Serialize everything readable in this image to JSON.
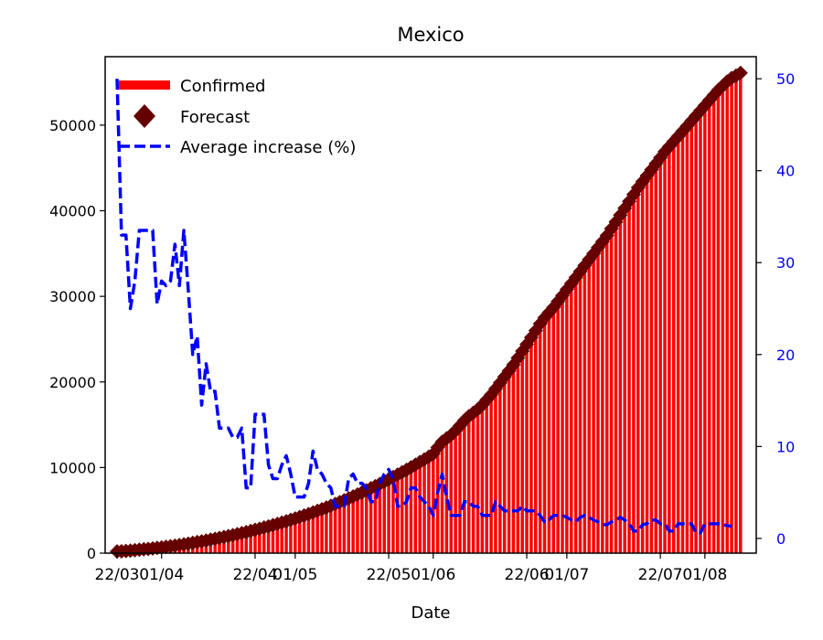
{
  "chart_data": {
    "type": "bar",
    "title": "Mexico",
    "xlabel": "Date",
    "ylabel": "",
    "ylim": [
      0,
      58000
    ],
    "y2lim": [
      -1.6,
      52.4
    ],
    "x_ticks": [
      {
        "day": 0,
        "label": "22/03"
      },
      {
        "day": 10,
        "label": "01/04"
      },
      {
        "day": 31,
        "label": "22/04"
      },
      {
        "day": 40,
        "label": "01/05"
      },
      {
        "day": 61,
        "label": "22/05"
      },
      {
        "day": 71,
        "label": "01/06"
      },
      {
        "day": 92,
        "label": "22/06"
      },
      {
        "day": 101,
        "label": "01/07"
      },
      {
        "day": 122,
        "label": "22/07"
      },
      {
        "day": 132,
        "label": "01/08"
      }
    ],
    "y_ticks": [
      "0",
      "10000",
      "20000",
      "30000",
      "40000",
      "50000"
    ],
    "y2_ticks": [
      "0",
      "10",
      "20",
      "30",
      "40",
      "50"
    ],
    "legend_position": "top-left",
    "colors": {
      "confirmed": "#ff0000",
      "forecast": "#660000",
      "average": "#0000ff"
    },
    "series": [
      {
        "name": "Confirmed",
        "kind": "bar",
        "color": "#ff0000",
        "x": [
          0,
          1,
          2,
          3,
          4,
          5,
          6,
          7,
          8,
          9,
          10,
          11,
          12,
          13,
          14,
          15,
          16,
          17,
          18,
          19,
          20,
          21,
          22,
          23,
          24,
          25,
          26,
          27,
          28,
          29,
          30,
          31,
          32,
          33,
          34,
          35,
          36,
          37,
          38,
          39,
          40,
          41,
          42,
          43,
          44,
          45,
          46,
          47,
          48,
          49,
          50,
          51,
          52,
          53,
          54,
          55,
          56,
          57,
          58,
          59,
          60,
          61,
          62,
          63,
          64,
          65,
          66,
          67,
          68,
          69,
          70,
          71,
          72,
          73,
          74,
          75,
          76,
          77,
          78,
          79,
          80,
          81,
          82,
          83,
          84,
          85,
          86,
          87,
          88,
          89,
          90,
          91,
          92,
          93,
          94,
          95,
          96,
          97,
          98,
          99,
          100,
          101,
          102,
          103,
          104,
          105,
          106,
          107,
          108,
          109,
          110,
          111,
          112,
          113,
          114,
          115,
          116,
          117,
          118,
          119,
          120,
          121,
          122,
          123,
          124,
          125,
          126,
          127,
          128,
          129,
          130,
          131,
          132,
          133,
          134,
          135,
          136,
          137,
          138,
          139,
          140
        ],
        "values": [
          200,
          220,
          260,
          300,
          350,
          400,
          450,
          500,
          550,
          610,
          670,
          730,
          800,
          870,
          950,
          1030,
          1110,
          1200,
          1290,
          1380,
          1470,
          1570,
          1670,
          1770,
          1880,
          1990,
          2100,
          2220,
          2340,
          2460,
          2590,
          2720,
          2850,
          2990,
          3130,
          3270,
          3420,
          3570,
          3730,
          3890,
          4050,
          4220,
          4390,
          4570,
          4750,
          4940,
          5130,
          5330,
          5530,
          5740,
          5950,
          6170,
          6390,
          6620,
          6850,
          7090,
          7330,
          7580,
          7830,
          8090,
          8350,
          8620,
          8890,
          9170,
          9450,
          9740,
          10030,
          10330,
          10640,
          10950,
          11270,
          11600,
          12350,
          13000,
          13400,
          13800,
          14300,
          14900,
          15500,
          16000,
          16400,
          16800,
          17300,
          17900,
          18500,
          19200,
          19900,
          20600,
          21300,
          22000,
          22800,
          23600,
          24400,
          25200,
          26000,
          26800,
          27500,
          28100,
          28700,
          29400,
          30100,
          30800,
          31500,
          32200,
          32900,
          33600,
          34300,
          35000,
          35700,
          36400,
          37100,
          37900,
          38700,
          39500,
          40300,
          41100,
          41900,
          42700,
          43400,
          44100,
          44800,
          45500,
          46200,
          46900,
          47500,
          48100,
          48700,
          49300,
          49900,
          50500,
          51100,
          51700,
          52300,
          52900,
          53500,
          54100,
          54600,
          55100,
          55500,
          55800,
          56100
        ]
      },
      {
        "name": "Forecast",
        "kind": "scatter",
        "marker": "diamond",
        "color": "#660000",
        "x": [
          0,
          1,
          2,
          3,
          4,
          5,
          6,
          7,
          8,
          9,
          10,
          11,
          12,
          13,
          14,
          15,
          16,
          17,
          18,
          19,
          20,
          21,
          22,
          23,
          24,
          25,
          26,
          27,
          28,
          29,
          30,
          31,
          32,
          33,
          34,
          35,
          36,
          37,
          38,
          39,
          40,
          41,
          42,
          43,
          44,
          45,
          46,
          47,
          48,
          49,
          50,
          51,
          52,
          53,
          54,
          55,
          56,
          57,
          58,
          59,
          60,
          61,
          62,
          63,
          64,
          65,
          66,
          67,
          68,
          69,
          70,
          71,
          72,
          73,
          74,
          75,
          76,
          77,
          78,
          79,
          80,
          81,
          82,
          83,
          84,
          85,
          86,
          87,
          88,
          89,
          90,
          91,
          92,
          93,
          94,
          95,
          96,
          97,
          98,
          99,
          100,
          101,
          102,
          103,
          104,
          105,
          106,
          107,
          108,
          109,
          110,
          111,
          112,
          113,
          114,
          115,
          116,
          117,
          118,
          119,
          120,
          121,
          122,
          123,
          124,
          125,
          126,
          127,
          128,
          129,
          130,
          131,
          132,
          133,
          134,
          135,
          136,
          137,
          138,
          139,
          140
        ],
        "values": [
          200,
          220,
          260,
          300,
          350,
          400,
          450,
          500,
          550,
          610,
          670,
          730,
          800,
          870,
          950,
          1030,
          1110,
          1200,
          1290,
          1380,
          1470,
          1570,
          1670,
          1770,
          1880,
          1990,
          2100,
          2220,
          2340,
          2460,
          2590,
          2720,
          2850,
          2990,
          3130,
          3270,
          3420,
          3570,
          3730,
          3890,
          4050,
          4220,
          4390,
          4570,
          4750,
          4940,
          5130,
          5330,
          5530,
          5740,
          5950,
          6170,
          6390,
          6620,
          6850,
          7090,
          7330,
          7580,
          7830,
          8090,
          8350,
          8620,
          8890,
          9170,
          9450,
          9740,
          10030,
          10330,
          10640,
          10950,
          11270,
          11600,
          12350,
          13000,
          13400,
          13800,
          14300,
          14900,
          15500,
          16000,
          16400,
          16800,
          17300,
          17900,
          18500,
          19200,
          19900,
          20600,
          21300,
          22000,
          22800,
          23600,
          24400,
          25200,
          26000,
          26800,
          27500,
          28100,
          28700,
          29400,
          30100,
          30800,
          31500,
          32200,
          32900,
          33600,
          34300,
          35000,
          35700,
          36400,
          37100,
          37900,
          38700,
          39500,
          40300,
          41100,
          41900,
          42700,
          43400,
          44100,
          44800,
          45500,
          46200,
          46900,
          47500,
          48100,
          48700,
          49300,
          49900,
          50500,
          51100,
          51700,
          52300,
          52900,
          53500,
          54100,
          54600,
          55100,
          55500,
          55800,
          56100
        ]
      },
      {
        "name": "Average increase (%)",
        "kind": "line",
        "style": "dashed",
        "axis": "right",
        "color": "#0000ff",
        "x": [
          0,
          1,
          2,
          3,
          4,
          5,
          6,
          7,
          8,
          9,
          10,
          11,
          12,
          13,
          14,
          15,
          16,
          17,
          18,
          19,
          20,
          21,
          22,
          23,
          24,
          25,
          26,
          27,
          28,
          29,
          30,
          31,
          32,
          33,
          34,
          35,
          36,
          37,
          38,
          39,
          40,
          41,
          42,
          43,
          44,
          45,
          46,
          47,
          48,
          49,
          50,
          51,
          52,
          53,
          54,
          55,
          56,
          57,
          58,
          59,
          60,
          61,
          62,
          63,
          64,
          65,
          66,
          67,
          68,
          69,
          70,
          71,
          72,
          73,
          74,
          75,
          76,
          77,
          78,
          79,
          80,
          81,
          82,
          83,
          84,
          85,
          86,
          87,
          88,
          89,
          90,
          91,
          92,
          93,
          94,
          95,
          96,
          97,
          98,
          99,
          100,
          101,
          102,
          103,
          104,
          105,
          106,
          107,
          108,
          109,
          110,
          111,
          112,
          113,
          114,
          115,
          116,
          117,
          118,
          119,
          120,
          121,
          122,
          123,
          124,
          125,
          126,
          127,
          128,
          129,
          130,
          131,
          132,
          133,
          134,
          135,
          136,
          137,
          138
        ],
        "values": [
          50,
          33,
          33,
          25,
          28,
          33.5,
          33.5,
          33.5,
          33.5,
          25.5,
          28,
          27.5,
          28,
          32,
          27.5,
          33.5,
          27,
          20,
          22,
          14.5,
          19,
          16,
          16,
          12,
          12,
          12,
          11,
          11,
          12,
          5.5,
          5.5,
          13.5,
          13.5,
          13.5,
          8,
          6.5,
          6.5,
          8,
          9,
          7,
          4.5,
          4.5,
          4.5,
          6,
          9.5,
          7.5,
          7,
          6,
          5.5,
          3.5,
          3.5,
          3.5,
          6.5,
          7,
          6,
          6,
          5.5,
          4,
          4,
          6,
          7,
          7.5,
          6.5,
          3.5,
          3.5,
          4,
          5.5,
          5.5,
          4.5,
          4,
          3.5,
          2.5,
          5,
          7,
          4.5,
          2.5,
          2.5,
          2.5,
          4,
          4,
          3.5,
          3.5,
          2.5,
          2.5,
          2.5,
          4,
          3.5,
          3,
          3,
          3,
          3,
          3.5,
          3,
          3,
          3,
          2.5,
          1.8,
          2,
          2.5,
          2.5,
          2.5,
          2.3,
          2,
          1.8,
          2.3,
          2.5,
          2.3,
          2,
          1.8,
          1.5,
          1.5,
          1.8,
          2,
          2.3,
          2,
          1.6,
          0.8,
          0.8,
          1.5,
          1.6,
          2,
          2,
          1.6,
          1.6,
          0.8,
          0.8,
          1.6,
          1.6,
          1.6,
          1.6,
          0.6,
          0.6,
          1.6,
          1.6,
          1.6,
          1.6,
          1.5,
          1.4,
          1.3
        ]
      }
    ]
  }
}
